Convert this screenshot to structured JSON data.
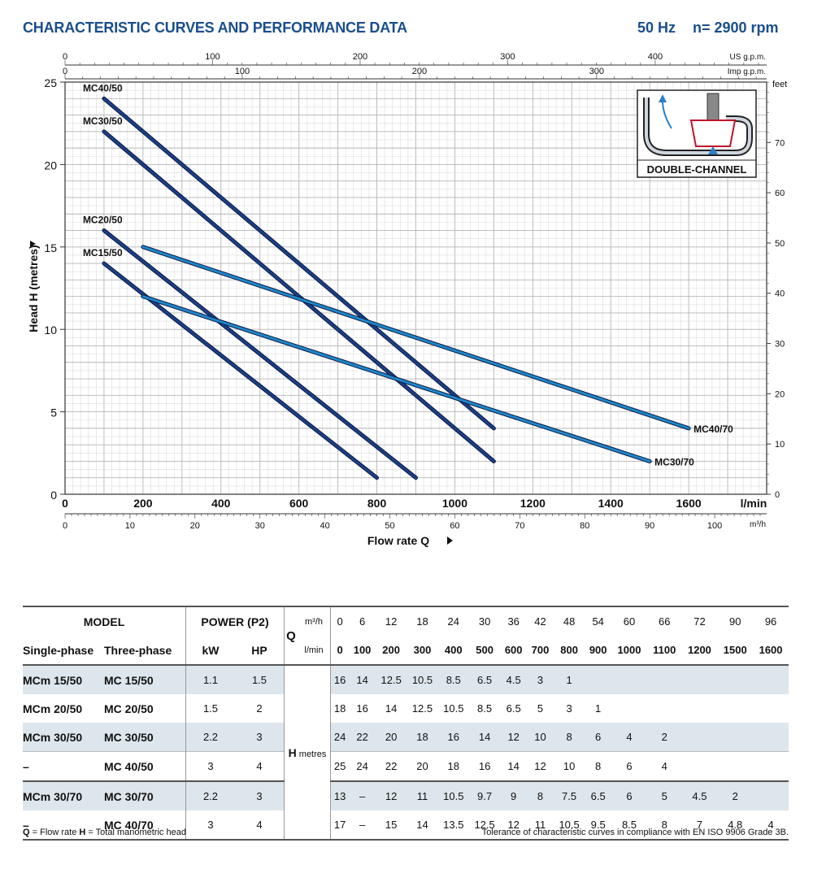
{
  "header": {
    "title": "CHARACTERISTIC CURVES AND PERFORMANCE DATA",
    "frequency": "50 Hz",
    "speed": "n= 2900 rpm"
  },
  "chart_data": {
    "type": "line",
    "xlabel": "Flow rate  Q",
    "ylabel": "Head H  (metres)",
    "x_unit": "l/min",
    "xlim": [
      0,
      1800
    ],
    "ylim": [
      0,
      25
    ],
    "x_ticks": [
      0,
      200,
      400,
      600,
      800,
      1000,
      1200,
      1400,
      1600
    ],
    "y_ticks": [
      0,
      5,
      10,
      15,
      20,
      25
    ],
    "axis_m3h": {
      "unit": "m³/h",
      "ticks": [
        0,
        10,
        20,
        30,
        40,
        50,
        60,
        70,
        80,
        90,
        100
      ]
    },
    "axis_usgpm": {
      "unit": "US g.p.m.",
      "ticks": [
        0,
        100,
        200,
        300,
        400
      ]
    },
    "axis_impgpm": {
      "unit": "Imp g.p.m.",
      "ticks": [
        0,
        100,
        200,
        300
      ]
    },
    "axis_feet": {
      "unit": "feet",
      "ticks": [
        0,
        10,
        20,
        30,
        40,
        50,
        60,
        70
      ]
    },
    "inset_label": "DOUBLE-CHANNEL",
    "series": [
      {
        "name": "MC40/50",
        "color": "#1b3f86",
        "x": [
          100,
          1100
        ],
        "y": [
          24,
          4
        ]
      },
      {
        "name": "MC30/50",
        "color": "#1b3f86",
        "x": [
          100,
          1100
        ],
        "y": [
          22,
          2
        ]
      },
      {
        "name": "MC20/50",
        "color": "#1b3f86",
        "x": [
          100,
          900
        ],
        "y": [
          16,
          1
        ]
      },
      {
        "name": "MC15/50",
        "color": "#1b3f86",
        "x": [
          100,
          800
        ],
        "y": [
          14,
          1
        ]
      },
      {
        "name": "MC40/70",
        "color": "#1f86c9",
        "x": [
          200,
          1600
        ],
        "y": [
          15,
          4
        ]
      },
      {
        "name": "MC30/70",
        "color": "#1f86c9",
        "x": [
          200,
          1500
        ],
        "y": [
          12,
          2
        ]
      }
    ]
  },
  "table": {
    "model_header": "MODEL",
    "power_header": "POWER (P2)",
    "single_header": "Single-phase",
    "three_header": "Three-phase",
    "kw_header": "kW",
    "hp_header": "HP",
    "q_label": "Q",
    "m3h_label": "m³/h",
    "lmin_label": "l/min",
    "h_label": "H",
    "metres_label": "metres",
    "m3h": [
      "0",
      "6",
      "12",
      "18",
      "24",
      "30",
      "36",
      "42",
      "48",
      "54",
      "60",
      "66",
      "72",
      "90",
      "96"
    ],
    "lmin": [
      "0",
      "100",
      "200",
      "300",
      "400",
      "500",
      "600",
      "700",
      "800",
      "900",
      "1000",
      "1100",
      "1200",
      "1500",
      "1600"
    ],
    "rows": [
      {
        "single": "MCm 15/50",
        "three": "MC 15/50",
        "kw": "1.1",
        "hp": "1.5",
        "h": [
          "16",
          "14",
          "12.5",
          "10.5",
          "8.5",
          "6.5",
          "4.5",
          "3",
          "1",
          "",
          "",
          "",
          "",
          "",
          ""
        ]
      },
      {
        "single": "MCm 20/50",
        "three": "MC 20/50",
        "kw": "1.5",
        "hp": "2",
        "h": [
          "18",
          "16",
          "14",
          "12.5",
          "10.5",
          "8.5",
          "6.5",
          "5",
          "3",
          "1",
          "",
          "",
          "",
          "",
          ""
        ]
      },
      {
        "single": "MCm 30/50",
        "three": "MC 30/50",
        "kw": "2.2",
        "hp": "3",
        "h": [
          "24",
          "22",
          "20",
          "18",
          "16",
          "14",
          "12",
          "10",
          "8",
          "6",
          "4",
          "2",
          "",
          "",
          ""
        ]
      },
      {
        "single": "–",
        "three": "MC 40/50",
        "kw": "3",
        "hp": "4",
        "h": [
          "25",
          "24",
          "22",
          "20",
          "18",
          "16",
          "14",
          "12",
          "10",
          "8",
          "6",
          "4",
          "",
          "",
          ""
        ]
      },
      {
        "single": "MCm 30/70",
        "three": "MC 30/70",
        "kw": "2.2",
        "hp": "3",
        "h": [
          "13",
          "–",
          "12",
          "11",
          "10.5",
          "9.7",
          "9",
          "8",
          "7.5",
          "6.5",
          "6",
          "5",
          "4.5",
          "2",
          ""
        ]
      },
      {
        "single": "–",
        "three": "MC 40/70",
        "kw": "3",
        "hp": "4",
        "h": [
          "17",
          "–",
          "15",
          "14",
          "13.5",
          "12.5",
          "12",
          "11",
          "10.5",
          "9.5",
          "8.5",
          "8",
          "7",
          "4.8",
          "4"
        ]
      }
    ]
  },
  "footnotes": {
    "left_q": "Q",
    "left_q_text": " = Flow rate   ",
    "left_h": "H",
    "left_h_text": " = Total manometric head",
    "right": "Tolerance of characteristic curves in compliance with EN ISO 9906 Grade 3B."
  }
}
